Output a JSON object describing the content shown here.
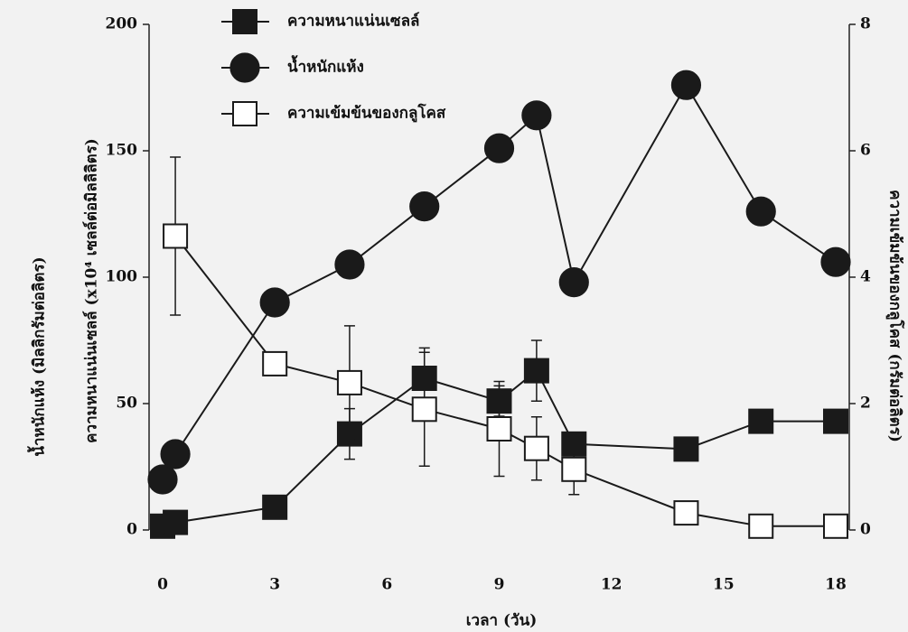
{
  "chart_data": {
    "type": "line",
    "x_label": "เวลา (วัน)",
    "y_label": "น้ำหนักแห้ง (มิลลิกรัมต่อลิตร)",
    "y_label_2": "ความหนาแน่นเซลล์ (x10⁴ เซลล์ต่อมิลลิลิตร)",
    "y2_label": "ความเข้มข้นของกลูโคส (กรัมต่อลิตร)",
    "x": [
      0,
      0.34,
      3,
      5,
      7,
      9,
      10,
      11,
      14,
      16,
      18
    ],
    "xlim": [
      0,
      18
    ],
    "xticks": [
      0,
      3,
      6,
      9,
      12,
      15,
      18
    ],
    "ylim": [
      0,
      200
    ],
    "yticks": [
      0,
      50,
      100,
      150,
      200
    ],
    "y2lim": [
      0,
      8
    ],
    "y2ticks": [
      0,
      2,
      4,
      6,
      8
    ],
    "series": [
      {
        "name": "ความหนาแน่นเซลล์",
        "color": "#1a1a1a",
        "marker": "square",
        "filled": true,
        "values": [
          1.5,
          3,
          9,
          38,
          60,
          51,
          63,
          34,
          32,
          43,
          43
        ],
        "errors": [
          null,
          null,
          null,
          10,
          12,
          6,
          12,
          4,
          null,
          null,
          null
        ]
      },
      {
        "name": "น้ำหนักแห้ง",
        "color": "#1a1a1a",
        "marker": "circle",
        "filled": true,
        "values": [
          20,
          30,
          90,
          105,
          128,
          151,
          164,
          98,
          176,
          126,
          106
        ],
        "errors": [
          null,
          null,
          null,
          null,
          null,
          null,
          null,
          null,
          null,
          null,
          null
        ]
      },
      {
        "name": "ความเข้มข้นของกลูโคส",
        "color": "#1a1a1a",
        "marker": "square",
        "filled": false,
        "axis": "y2",
        "values": [
          null,
          4.65,
          2.63,
          2.33,
          1.91,
          1.6,
          1.29,
          0.96,
          0.27,
          0.06,
          0.06
        ],
        "errors": [
          null,
          1.25,
          null,
          0.9,
          0.9,
          0.75,
          0.5,
          0.4,
          null,
          null,
          null
        ]
      }
    ]
  }
}
